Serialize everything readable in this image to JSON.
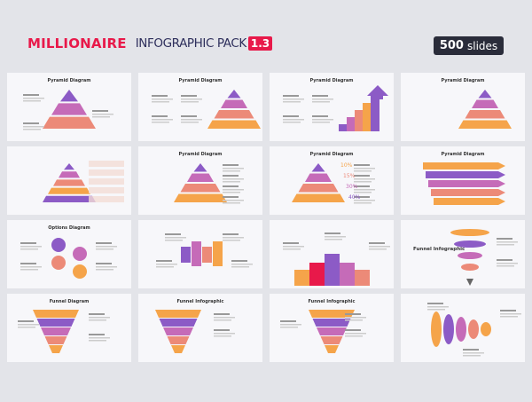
{
  "header": {
    "brand": "MILLIONAIRE",
    "pack": "INFOGRAPHIC PACK",
    "version": "1.3",
    "count": "500",
    "count_unit": "slides"
  },
  "colors": {
    "accent": "#e8194a",
    "purple": "#8c5bc6",
    "pink": "#c56bb8",
    "salmon": "#ec8a78",
    "orange": "#f5a44a"
  },
  "placeholder": "Write your title",
  "slides": [
    {
      "title": "Pyramid Diagram",
      "kind": "pyramid"
    },
    {
      "title": "Pyramid Diagram",
      "kind": "pyramid4"
    },
    {
      "title": "Pyramid Diagram",
      "kind": "steps"
    },
    {
      "title": "Pyramid Diagram",
      "kind": "layers"
    },
    {
      "title": "",
      "kind": "pyramid5"
    },
    {
      "title": "Pyramid Diagram",
      "kind": "cone"
    },
    {
      "title": "Pyramid Diagram",
      "kind": "pct",
      "labels": [
        "10%",
        "15%",
        "30%",
        "40%"
      ]
    },
    {
      "title": "Pyramid Diagram",
      "kind": "arrows"
    },
    {
      "title": "Options Diagram",
      "kind": "options"
    },
    {
      "title": "",
      "kind": "blocks"
    },
    {
      "title": "",
      "kind": "bars"
    },
    {
      "title": "Funnel Infographic",
      "kind": "funnelside",
      "left": true
    },
    {
      "title": "Funnel Diagram",
      "kind": "funnel"
    },
    {
      "title": "Funnel Infographic",
      "kind": "funnel2"
    },
    {
      "title": "Funnel Infographic",
      "kind": "funnel3"
    },
    {
      "title": "",
      "kind": "cones"
    }
  ]
}
